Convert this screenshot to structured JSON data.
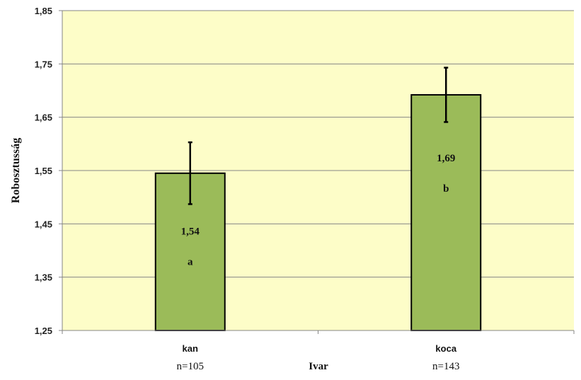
{
  "chart_data": {
    "type": "bar",
    "title": "",
    "xlabel": "Ivar",
    "ylabel": "Robosztusság",
    "ylim": [
      1.25,
      1.85
    ],
    "yticks": [
      "1,25",
      "1,35",
      "1,45",
      "1,55",
      "1,65",
      "1,75",
      "1,85"
    ],
    "ytick_values": [
      1.25,
      1.35,
      1.45,
      1.55,
      1.65,
      1.75,
      1.85
    ],
    "categories": [
      "kan",
      "koca"
    ],
    "n_labels": [
      "n=105",
      "n=143"
    ],
    "values": [
      1.545,
      1.692
    ],
    "error_upper": [
      1.603,
      1.743
    ],
    "error_lower": [
      1.487,
      1.641
    ],
    "value_labels": [
      "1,54",
      "1,69"
    ],
    "significance_labels": [
      "a",
      "b"
    ],
    "grid": true,
    "colors": {
      "plot_background": "#fdfdc8",
      "bar_fill": "#9bbb59",
      "bar_stroke": "#000000",
      "gridline": "#868686",
      "error_bar": "#000000"
    }
  }
}
